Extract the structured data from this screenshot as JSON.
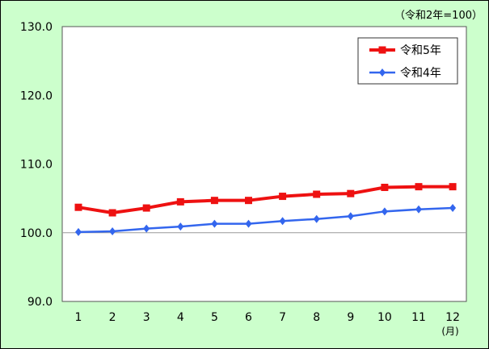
{
  "chart_data": {
    "type": "line",
    "unit_note": "（令和2年=100）",
    "x_unit": "(月)",
    "categories": [
      "1",
      "2",
      "3",
      "4",
      "5",
      "6",
      "7",
      "8",
      "9",
      "10",
      "11",
      "12"
    ],
    "ylim": [
      90,
      130
    ],
    "yticks": [
      "90.0",
      "100.0",
      "110.0",
      "120.0",
      "130.0"
    ],
    "reference_line": 100,
    "grid": false,
    "legend_position": "top-right",
    "series": [
      {
        "name": "令和5年",
        "color": "#ee1111",
        "marker": "square",
        "values": [
          103.7,
          102.9,
          103.6,
          104.5,
          104.7,
          104.7,
          105.3,
          105.6,
          105.7,
          106.6,
          106.7,
          106.7
        ]
      },
      {
        "name": "令和4年",
        "color": "#3366ee",
        "marker": "diamond",
        "values": [
          100.1,
          100.2,
          100.6,
          100.9,
          101.3,
          101.3,
          101.7,
          102.0,
          102.4,
          103.1,
          103.4,
          103.6
        ]
      }
    ]
  }
}
